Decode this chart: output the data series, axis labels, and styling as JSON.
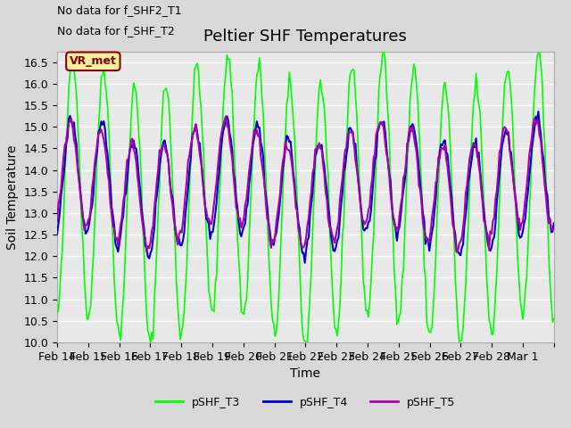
{
  "title": "Peltier SHF Temperatures",
  "xlabel": "Time",
  "ylabel": "Soil Temperature",
  "ylim": [
    10.0,
    16.75
  ],
  "yticks": [
    10.0,
    10.5,
    11.0,
    11.5,
    12.0,
    12.5,
    13.0,
    13.5,
    14.0,
    14.5,
    15.0,
    15.5,
    16.0,
    16.5
  ],
  "no_data_text1": "No data for f_SHF2_T1",
  "no_data_text2": "No data for f_SHF_T2",
  "vr_met_label": "VR_met",
  "legend_labels": [
    "pSHF_T3",
    "pSHF_T4",
    "pSHF_T5"
  ],
  "color_T3": "#00ff00",
  "color_T4": "#0000cc",
  "color_T5": "#aa00aa",
  "title_fontsize": 13,
  "label_fontsize": 10,
  "tick_fontsize": 9,
  "x_tick_positions": [
    0,
    1,
    2,
    3,
    4,
    5,
    6,
    7,
    8,
    9,
    10,
    11,
    12,
    13,
    14,
    15,
    16
  ],
  "x_date_labels": [
    "Feb 14",
    "Feb 15",
    "Feb 16",
    "Feb 17",
    "Feb 18",
    "Feb 19",
    "Feb 20",
    "Feb 21",
    "Feb 22",
    "Feb 23",
    "Feb 24",
    "Feb 25",
    "Feb 26",
    "Feb 27",
    "Feb 28",
    "Mar 1",
    ""
  ]
}
